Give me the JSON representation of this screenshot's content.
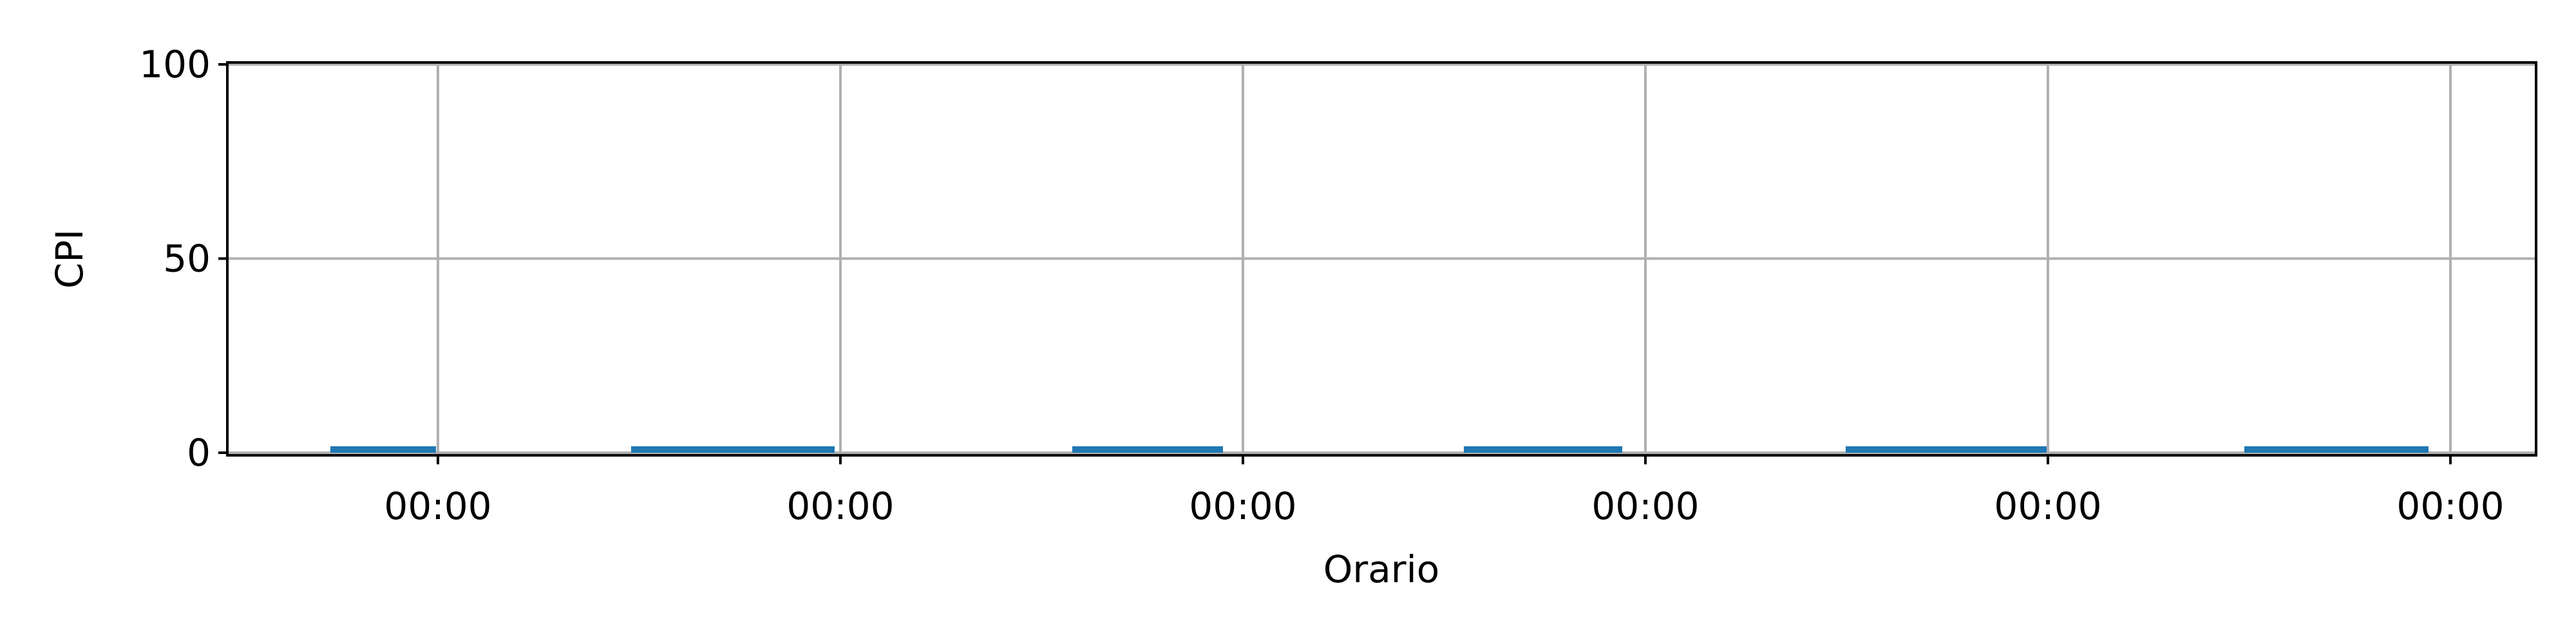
{
  "chart_data": {
    "type": "bar",
    "title": "",
    "xlabel": "Orario",
    "ylabel": "CPI",
    "ylim": [
      0,
      100
    ],
    "yticks": [
      0,
      50,
      100
    ],
    "xtick_labels": [
      "00:00",
      "00:00",
      "00:00",
      "00:00",
      "00:00",
      "00:00"
    ],
    "series": [
      {
        "color": "#1f77b4",
        "bars": [
          {
            "label": "00:00",
            "value": 0
          },
          {
            "label": "00:00",
            "value": 0
          },
          {
            "label": "00:00",
            "value": 0
          },
          {
            "label": "00:00",
            "value": 0
          },
          {
            "label": "00:00",
            "value": 0
          },
          {
            "label": "00:00",
            "value": 0
          }
        ]
      }
    ],
    "grid": true,
    "legend": false
  }
}
